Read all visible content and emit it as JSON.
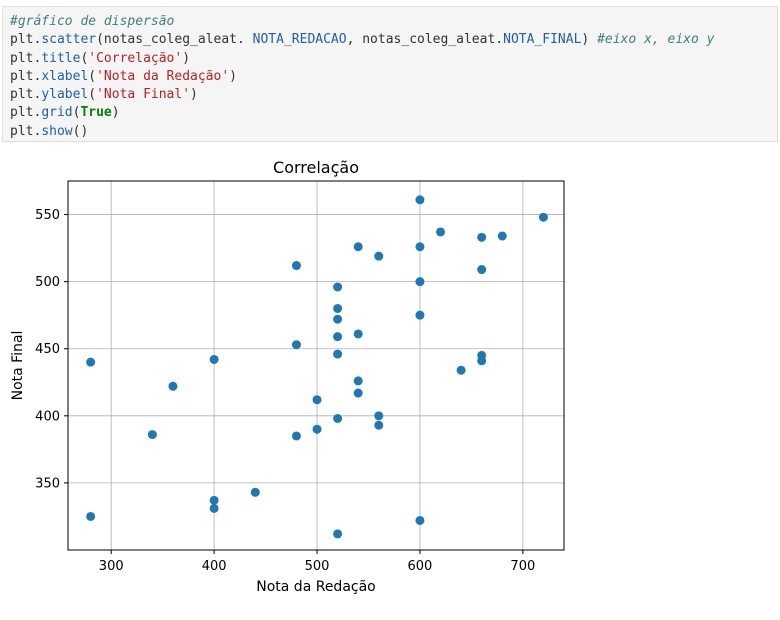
{
  "code": {
    "line1_comment": "#gráfico de dispersão",
    "line2": {
      "prefix": "plt.",
      "func": "scatter",
      "arg1": "(notas_coleg_aleat. ",
      "arg1_attr": "NOTA_REDACAO",
      "arg2": ", notas_coleg_aleat.",
      "arg2_attr": "NOTA_FINAL",
      "close": ") ",
      "comment": "#eixo x, eixo y"
    },
    "line3": {
      "prefix": "plt.",
      "func": "title",
      "open": "(",
      "str": "'Correlação'",
      "close": ")"
    },
    "line4": {
      "prefix": "plt.",
      "func": "xlabel",
      "open": "(",
      "str": "'Nota da Redação'",
      "close": ")"
    },
    "line5": {
      "prefix": "plt.",
      "func": "ylabel",
      "open": "(",
      "str": "'Nota Final'",
      "close": ")"
    },
    "line6": {
      "prefix": "plt.",
      "func": "grid",
      "open": "(",
      "kw": "True",
      "close": ")"
    },
    "line7": {
      "prefix": "plt.",
      "func": "show",
      "close": "()"
    }
  },
  "colors": {
    "marker": "#1f77b4",
    "grid": "#b0b0b0"
  },
  "chart_data": {
    "type": "scatter",
    "title": "Correlação",
    "xlabel": "Nota da Redação",
    "ylabel": "Nota Final",
    "xlim": [
      258,
      740
    ],
    "ylim": [
      300,
      575
    ],
    "xticks": [
      300,
      400,
      500,
      600,
      700
    ],
    "yticks": [
      350,
      400,
      450,
      500,
      550
    ],
    "grid": true,
    "points": [
      {
        "x": 280,
        "y": 440
      },
      {
        "x": 280,
        "y": 325
      },
      {
        "x": 340,
        "y": 386
      },
      {
        "x": 360,
        "y": 422
      },
      {
        "x": 400,
        "y": 442
      },
      {
        "x": 400,
        "y": 337
      },
      {
        "x": 400,
        "y": 331
      },
      {
        "x": 440,
        "y": 343
      },
      {
        "x": 480,
        "y": 512
      },
      {
        "x": 480,
        "y": 453
      },
      {
        "x": 480,
        "y": 385
      },
      {
        "x": 500,
        "y": 412
      },
      {
        "x": 500,
        "y": 390
      },
      {
        "x": 520,
        "y": 496
      },
      {
        "x": 520,
        "y": 480
      },
      {
        "x": 520,
        "y": 472
      },
      {
        "x": 520,
        "y": 459
      },
      {
        "x": 520,
        "y": 446
      },
      {
        "x": 520,
        "y": 398
      },
      {
        "x": 520,
        "y": 312
      },
      {
        "x": 540,
        "y": 526
      },
      {
        "x": 540,
        "y": 461
      },
      {
        "x": 540,
        "y": 426
      },
      {
        "x": 540,
        "y": 417
      },
      {
        "x": 560,
        "y": 519
      },
      {
        "x": 560,
        "y": 400
      },
      {
        "x": 560,
        "y": 393
      },
      {
        "x": 600,
        "y": 561
      },
      {
        "x": 600,
        "y": 526
      },
      {
        "x": 600,
        "y": 500
      },
      {
        "x": 600,
        "y": 475
      },
      {
        "x": 600,
        "y": 322
      },
      {
        "x": 620,
        "y": 537
      },
      {
        "x": 640,
        "y": 434
      },
      {
        "x": 660,
        "y": 533
      },
      {
        "x": 660,
        "y": 509
      },
      {
        "x": 660,
        "y": 445
      },
      {
        "x": 660,
        "y": 441
      },
      {
        "x": 680,
        "y": 534
      },
      {
        "x": 720,
        "y": 548
      }
    ]
  }
}
